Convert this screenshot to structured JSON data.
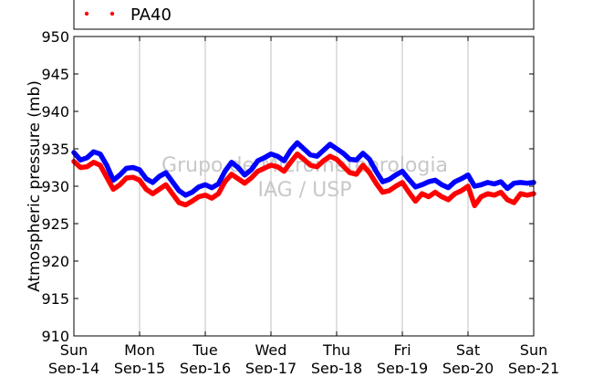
{
  "chart_data": {
    "type": "line",
    "ylabel": "Atmospheric pressure (mb)",
    "ylim": [
      910,
      950
    ],
    "yticks": [
      910,
      915,
      920,
      925,
      930,
      935,
      940,
      945,
      950
    ],
    "xlim": [
      0,
      7
    ],
    "xticks": [
      {
        "x": 0,
        "day": "Sun",
        "date": "Sep-14"
      },
      {
        "x": 1,
        "day": "Mon",
        "date": "Sep-15"
      },
      {
        "x": 2,
        "day": "Tue",
        "date": "Sep-16"
      },
      {
        "x": 3,
        "day": "Wed",
        "date": "Sep-17"
      },
      {
        "x": 4,
        "day": "Thu",
        "date": "Sep-18"
      },
      {
        "x": 5,
        "day": "Fri",
        "date": "Sep-19"
      },
      {
        "x": 6,
        "day": "Sat",
        "date": "Sep-20"
      },
      {
        "x": 7,
        "day": "Sun",
        "date": "Sep-21"
      }
    ],
    "grid": "vertical",
    "legend_position": "top",
    "watermark": [
      "Grupo de Micrometeorologia",
      "IAG / USP"
    ],
    "series": [
      {
        "name": "",
        "color": "#0000ff",
        "x": [
          0,
          0.1,
          0.2,
          0.3,
          0.4,
          0.5,
          0.6,
          0.7,
          0.8,
          0.9,
          1.0,
          1.1,
          1.2,
          1.3,
          1.4,
          1.5,
          1.6,
          1.7,
          1.8,
          1.9,
          2.0,
          2.1,
          2.2,
          2.3,
          2.4,
          2.5,
          2.6,
          2.7,
          2.8,
          2.9,
          3.0,
          3.1,
          3.2,
          3.3,
          3.4,
          3.5,
          3.6,
          3.7,
          3.8,
          3.9,
          4.0,
          4.1,
          4.2,
          4.3,
          4.4,
          4.5,
          4.6,
          4.7,
          4.8,
          4.9,
          5.0,
          5.1,
          5.2,
          5.3,
          5.4,
          5.5,
          5.6,
          5.7,
          5.8,
          5.9,
          6.0,
          6.1,
          6.2,
          6.3,
          6.4,
          6.5,
          6.6,
          6.7,
          6.8,
          6.9,
          7.0
        ],
        "y": [
          934.5,
          933.5,
          933.8,
          934.6,
          934.3,
          932.8,
          930.8,
          931.5,
          932.4,
          932.5,
          932.2,
          931.0,
          930.5,
          931.3,
          931.8,
          930.6,
          929.4,
          928.8,
          929.2,
          929.9,
          930.2,
          929.8,
          930.3,
          932.0,
          933.2,
          932.5,
          931.5,
          932.2,
          933.4,
          933.8,
          934.3,
          934.0,
          933.4,
          934.8,
          935.8,
          935.0,
          934.2,
          934.0,
          934.8,
          935.6,
          935.0,
          934.4,
          933.6,
          933.5,
          934.4,
          933.6,
          932.0,
          930.6,
          930.9,
          931.5,
          932.0,
          930.9,
          929.9,
          930.2,
          930.6,
          930.8,
          930.2,
          929.8,
          930.6,
          931.0,
          931.5,
          930.0,
          930.2,
          930.5,
          930.3,
          930.6,
          929.7,
          930.4,
          930.5,
          930.4,
          930.5
        ]
      },
      {
        "name": "PA40",
        "color": "#ff0000",
        "x": [
          0,
          0.1,
          0.2,
          0.3,
          0.4,
          0.5,
          0.6,
          0.7,
          0.8,
          0.9,
          1.0,
          1.1,
          1.2,
          1.3,
          1.4,
          1.5,
          1.6,
          1.7,
          1.8,
          1.9,
          2.0,
          2.1,
          2.2,
          2.3,
          2.4,
          2.5,
          2.6,
          2.7,
          2.8,
          2.9,
          3.0,
          3.1,
          3.2,
          3.3,
          3.4,
          3.5,
          3.6,
          3.7,
          3.8,
          3.9,
          4.0,
          4.1,
          4.2,
          4.3,
          4.4,
          4.5,
          4.6,
          4.7,
          4.8,
          4.9,
          5.0,
          5.1,
          5.2,
          5.3,
          5.4,
          5.5,
          5.6,
          5.7,
          5.8,
          5.9,
          6.0,
          6.1,
          6.2,
          6.3,
          6.4,
          6.5,
          6.6,
          6.7,
          6.8,
          6.9,
          7.0
        ],
        "y": [
          933.3,
          932.5,
          932.6,
          933.2,
          932.8,
          931.2,
          929.6,
          930.2,
          931.1,
          931.2,
          930.8,
          929.6,
          929.0,
          929.6,
          930.2,
          929.0,
          927.8,
          927.5,
          928.0,
          928.6,
          928.8,
          928.4,
          929.0,
          930.6,
          931.6,
          931.0,
          930.4,
          931.1,
          932.0,
          932.4,
          932.8,
          932.6,
          932.0,
          933.2,
          934.3,
          933.6,
          932.8,
          932.6,
          933.4,
          934.0,
          933.6,
          932.7,
          931.8,
          931.6,
          932.8,
          931.8,
          930.4,
          929.2,
          929.4,
          930.0,
          930.5,
          929.2,
          928.0,
          929.0,
          928.6,
          929.2,
          928.6,
          928.2,
          929.0,
          929.4,
          930.0,
          927.4,
          928.6,
          929.0,
          928.8,
          929.2,
          928.2,
          927.8,
          929.0,
          928.8,
          929.0
        ]
      }
    ]
  }
}
